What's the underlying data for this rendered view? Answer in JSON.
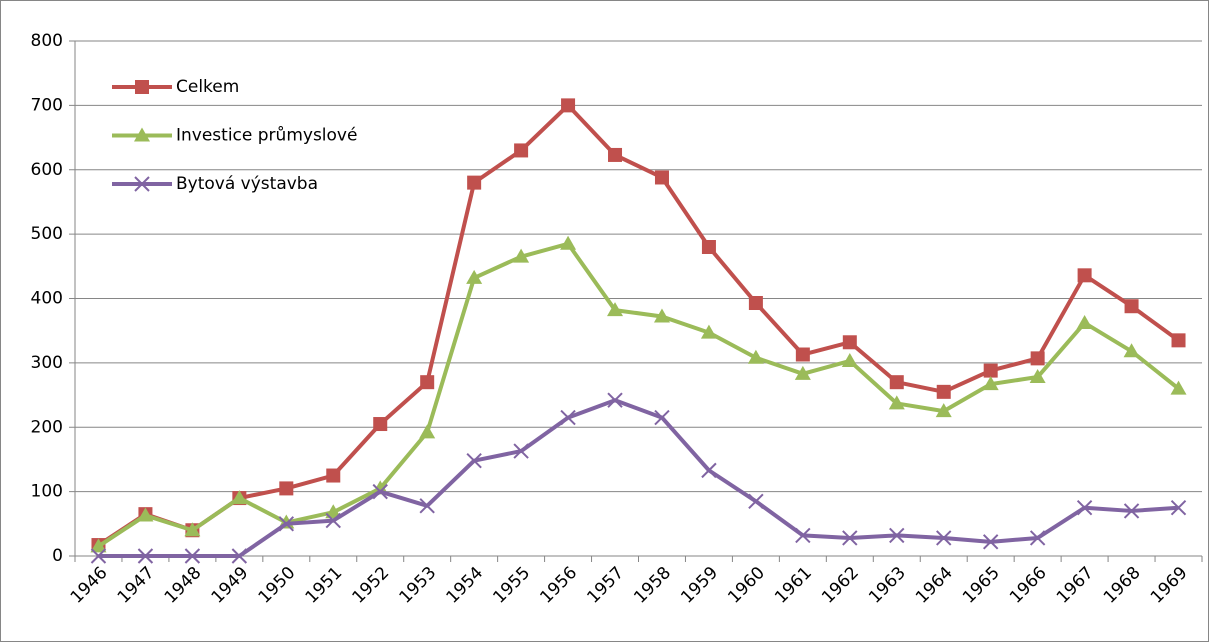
{
  "chart_data": {
    "type": "line",
    "categories": [
      "1946",
      "1947",
      "1948",
      "1949",
      "1950",
      "1951",
      "1952",
      "1953",
      "1954",
      "1955",
      "1956",
      "1957",
      "1958",
      "1959",
      "1960",
      "1961",
      "1962",
      "1963",
      "1964",
      "1965",
      "1966",
      "1967",
      "1968",
      "1969"
    ],
    "series": [
      {
        "name": "Celkem",
        "color": "#c0504d",
        "marker": "square",
        "values": [
          17,
          65,
          40,
          90,
          105,
          125,
          205,
          270,
          580,
          630,
          700,
          623,
          588,
          480,
          393,
          313,
          332,
          270,
          255,
          288,
          307,
          436,
          388,
          335
        ]
      },
      {
        "name": "Investice průmyslové",
        "color": "#9bbb59",
        "marker": "triangle",
        "values": [
          15,
          63,
          40,
          90,
          52,
          68,
          105,
          192,
          432,
          465,
          485,
          382,
          372,
          347,
          308,
          283,
          303,
          237,
          225,
          267,
          278,
          362,
          318,
          260
        ]
      },
      {
        "name": "Bytová výstavba",
        "color": "#8064a2",
        "marker": "x",
        "values": [
          0,
          0,
          0,
          0,
          50,
          55,
          100,
          78,
          148,
          163,
          215,
          242,
          215,
          133,
          85,
          32,
          28,
          32,
          28,
          22,
          28,
          75,
          70,
          75
        ]
      }
    ],
    "ylim": [
      0,
      800
    ],
    "yticks": [
      0,
      100,
      200,
      300,
      400,
      500,
      600,
      700,
      800
    ],
    "grid": true,
    "legend": "upper left"
  }
}
